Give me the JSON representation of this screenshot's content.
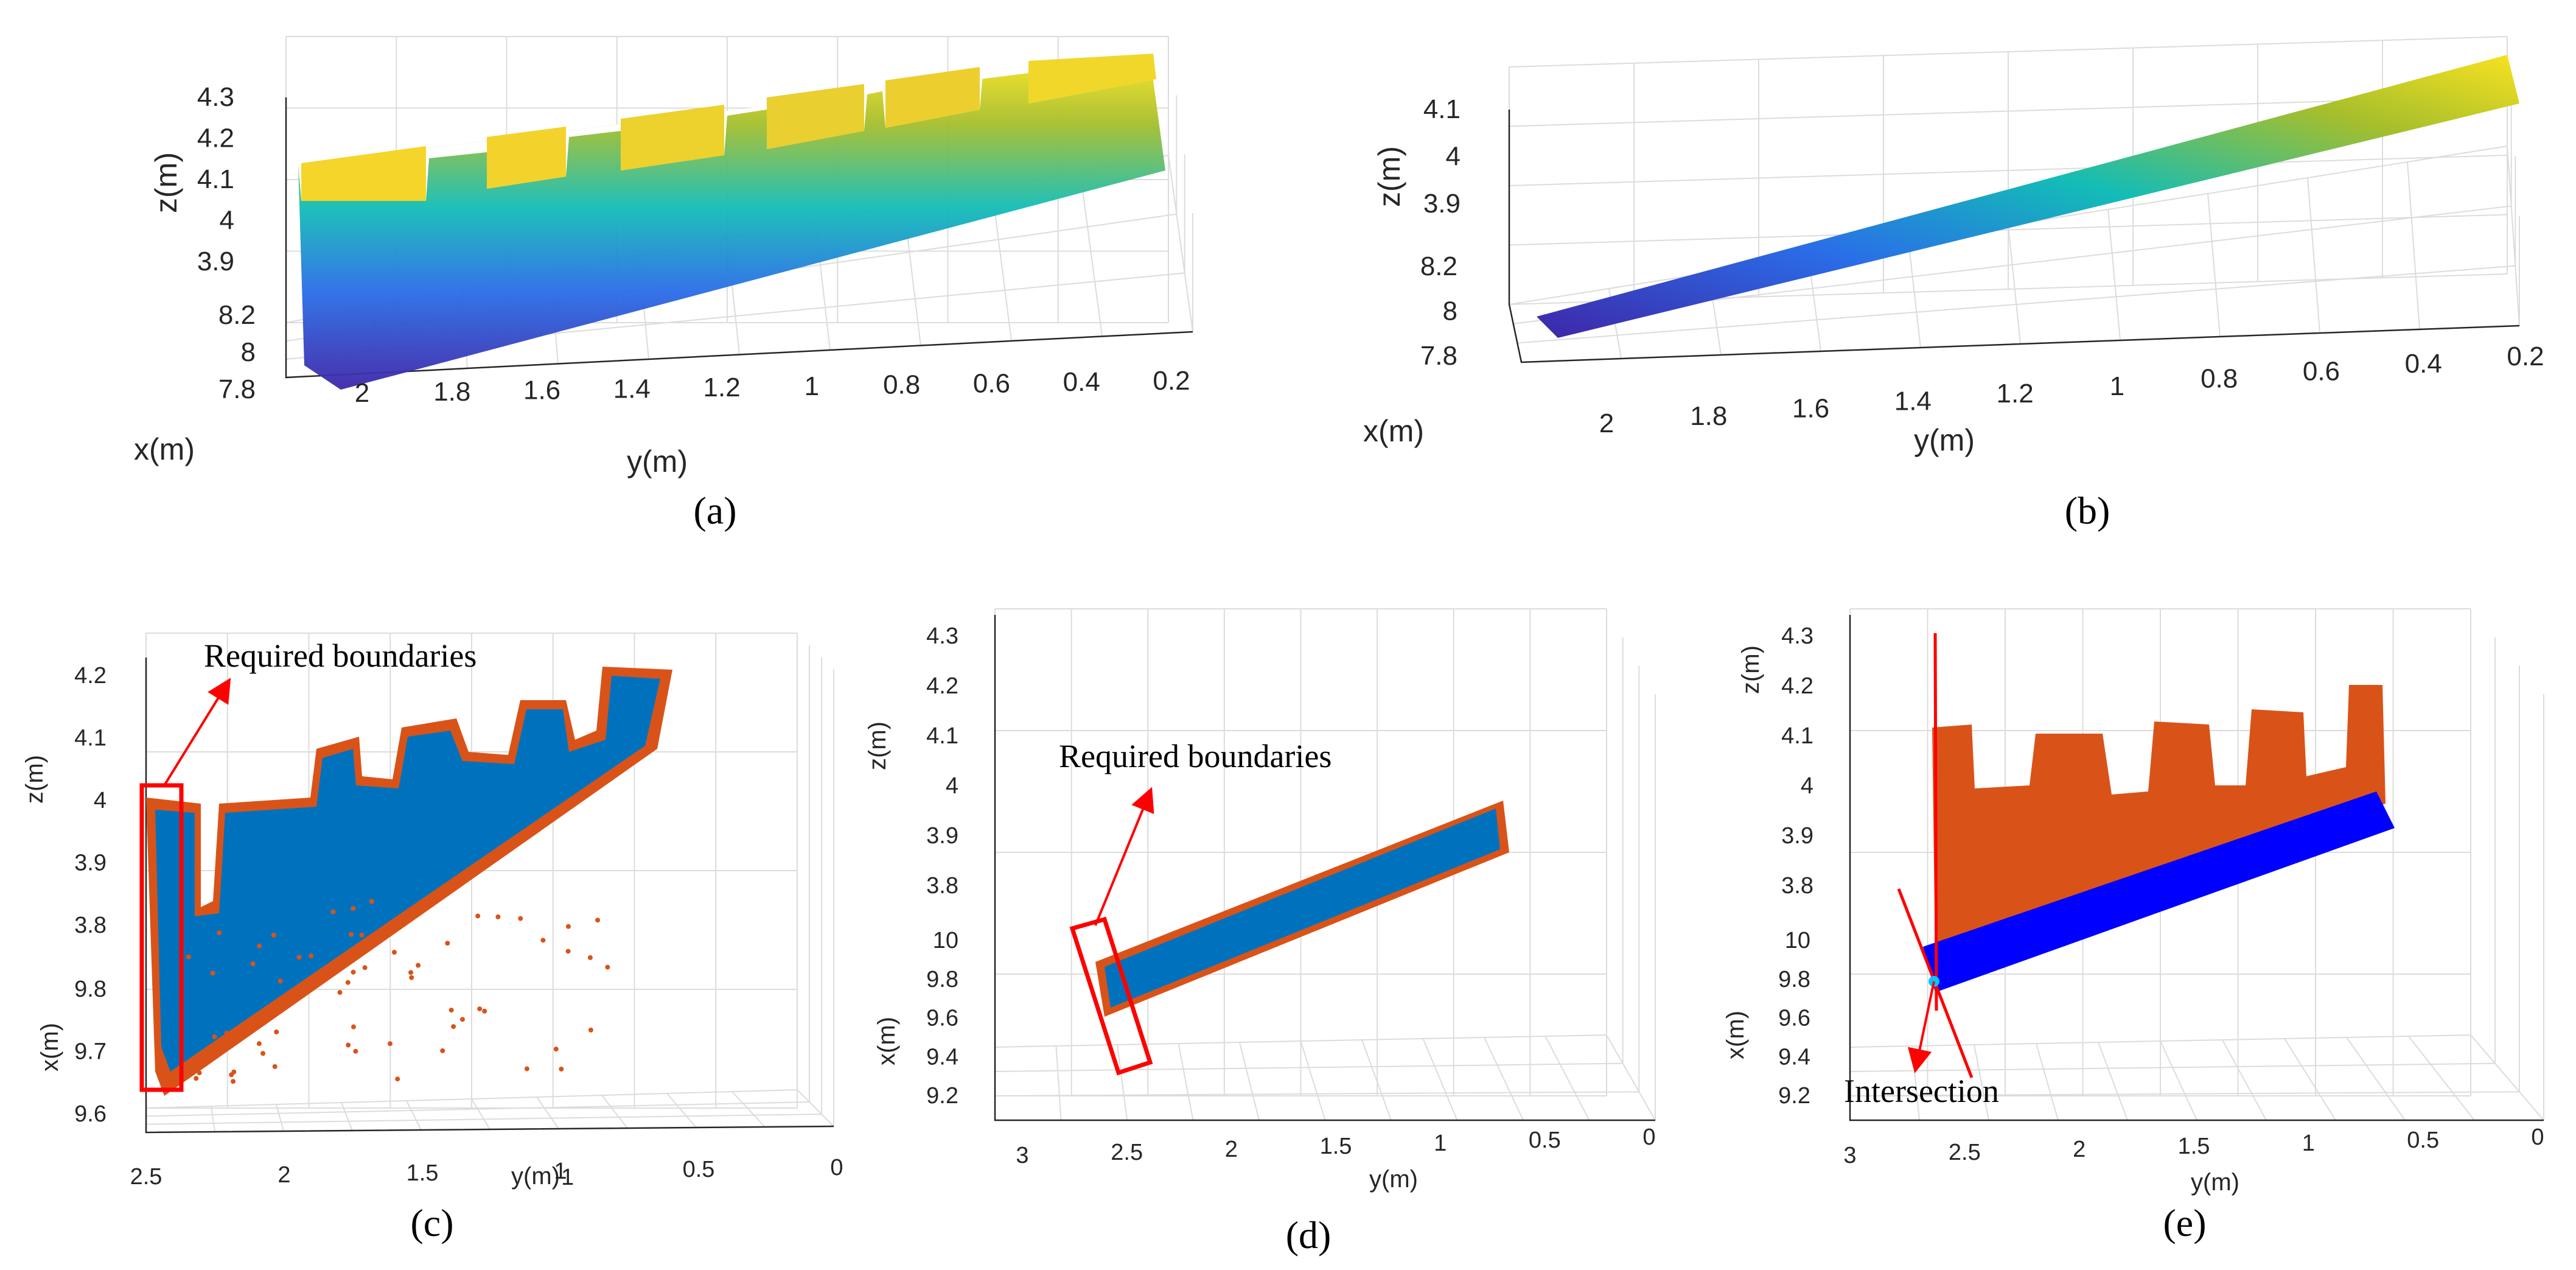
{
  "figure": {
    "captions": [
      "(a)",
      "(b)",
      "(c)",
      "(d)",
      "(e)"
    ]
  },
  "colors": {
    "parula_low": "#3e26a8",
    "parula_mid": "#13bdb6",
    "parula_high": "#f9e220",
    "boundary_orange": "#d95319",
    "interior_blue": "#0072bd",
    "ground_blue": "#0000ff",
    "annotation_red": "#ff0000",
    "intersection_cyan": "#00c8ff"
  },
  "chart_data": [
    {
      "id": "a",
      "type": "scatter",
      "title": "",
      "caption": "(a)",
      "xlabel": "x(m)",
      "ylabel": "y(m)",
      "zlabel": "z(m)",
      "x_ticks": [
        "8.2",
        "8",
        "7.8"
      ],
      "y_ticks": [
        "2",
        "1.8",
        "1.6",
        "1.4",
        "1.2",
        "1",
        "0.8",
        "0.6",
        "0.4",
        "0.2"
      ],
      "z_ticks": [
        "4.3",
        "4.2",
        "4.1",
        "4",
        "3.9"
      ],
      "ylim": [
        0.1,
        2.1
      ],
      "zlim": [
        3.85,
        4.33
      ],
      "description": "Point cloud colored by height (parula colormap): vertical wall with rectangular window openings along the top edge and a sloping lower portion",
      "series": [
        {
          "name": "wall points",
          "colormap": "parula"
        }
      ]
    },
    {
      "id": "b",
      "type": "scatter",
      "title": "",
      "caption": "(b)",
      "xlabel": "x(m)",
      "ylabel": "y(m)",
      "zlabel": "z(m)",
      "x_ticks": [
        "8.2",
        "8",
        "7.8"
      ],
      "y_ticks": [
        "2",
        "1.8",
        "1.6",
        "1.4",
        "1.2",
        "1",
        "0.8",
        "0.6",
        "0.4",
        "0.2"
      ],
      "z_ticks": [
        "4.1",
        "4",
        "3.9"
      ],
      "ylim": [
        0.1,
        2.1
      ],
      "zlim": [
        3.85,
        4.12
      ],
      "description": "Point cloud colored by height (parula colormap): narrow inclined planar strip rising from low y=2.1 end to high y=0.1 end",
      "series": [
        {
          "name": "strip points",
          "colormap": "parula"
        }
      ]
    },
    {
      "id": "c",
      "type": "scatter",
      "title": "",
      "caption": "(c)",
      "xlabel": "x(m)",
      "ylabel": "y(m)",
      "zlabel": "z(m)",
      "x_ticks": [
        "9.8",
        "9.7",
        "9.6"
      ],
      "y_ticks": [
        "2.5",
        "2",
        "1.5",
        "1",
        "0.5",
        "0"
      ],
      "y_tick_label_suffix": "1",
      "z_ticks": [
        "4.2",
        "4.1",
        "4",
        "3.9",
        "3.8"
      ],
      "annotation": "Required boundaries",
      "series": [
        {
          "name": "interior points",
          "color": "#0072bd"
        },
        {
          "name": "boundary points",
          "color": "#d95319"
        }
      ]
    },
    {
      "id": "d",
      "type": "scatter",
      "title": "",
      "caption": "(d)",
      "xlabel": "x(m)",
      "ylabel": "y(m)",
      "zlabel": "z(m)",
      "x_ticks": [
        "10",
        "9.8",
        "9.6",
        "9.4",
        "9.2"
      ],
      "y_ticks": [
        "3",
        "2.5",
        "2",
        "1.5",
        "1",
        "0.5",
        "0"
      ],
      "z_ticks": [
        "4.3",
        "4.2",
        "4.1",
        "4",
        "3.9",
        "3.8"
      ],
      "annotation": "Required boundaries",
      "series": [
        {
          "name": "interior points",
          "color": "#0072bd"
        },
        {
          "name": "boundary points",
          "color": "#d95319"
        }
      ]
    },
    {
      "id": "e",
      "type": "scatter",
      "title": "",
      "caption": "(e)",
      "xlabel": "x(m)",
      "ylabel": "y(m)",
      "zlabel": "z(m)",
      "x_ticks": [
        "10",
        "9.8",
        "9.6",
        "9.4",
        "9.2"
      ],
      "y_ticks": [
        "3",
        "2.5",
        "2",
        "1.5",
        "1",
        "0.5",
        "0"
      ],
      "z_ticks": [
        "4.3",
        "4.2",
        "4.1",
        "4",
        "3.9",
        "3.8"
      ],
      "annotation": "Intersection",
      "series": [
        {
          "name": "wall points",
          "color": "#d95319"
        },
        {
          "name": "ground strip points",
          "color": "#0000ff"
        },
        {
          "name": "fitted lines",
          "color": "#ff0000"
        },
        {
          "name": "intersection point",
          "color": "#00c8ff"
        }
      ]
    }
  ]
}
